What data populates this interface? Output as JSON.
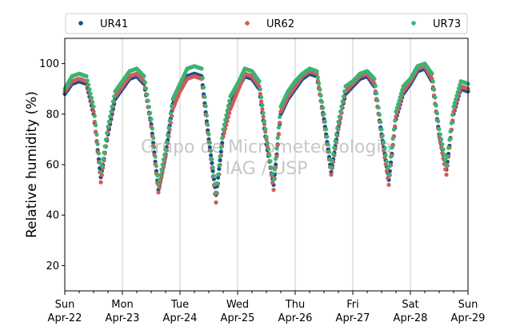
{
  "chart_data": {
    "type": "scatter",
    "title": "",
    "xlabel": "",
    "ylabel": "Relative humidity (%)",
    "watermark": [
      "Grupo de Micrometeorologia",
      "IAG / USP"
    ],
    "ylim": [
      10,
      110
    ],
    "xlim": [
      "2018-04-22 00:00",
      "2018-04-29 00:00"
    ],
    "yticks": [
      20,
      40,
      60,
      80,
      100
    ],
    "xticks": [
      {
        "day": "Sun",
        "date": "Apr-22"
      },
      {
        "day": "Mon",
        "date": "Apr-23"
      },
      {
        "day": "Tue",
        "date": "Apr-24"
      },
      {
        "day": "Wed",
        "date": "Apr-25"
      },
      {
        "day": "Thu",
        "date": "Apr-26"
      },
      {
        "day": "Fri",
        "date": "Apr-27"
      },
      {
        "day": "Sat",
        "date": "Apr-28"
      },
      {
        "day": "Sun",
        "date": "Apr-29"
      }
    ],
    "grid": "vertical",
    "legend_position": "top",
    "x": [
      "2018-04-22 00:00",
      "2018-04-22 03:00",
      "2018-04-22 06:00",
      "2018-04-22 09:00",
      "2018-04-22 12:00",
      "2018-04-22 15:00",
      "2018-04-22 18:00",
      "2018-04-22 21:00",
      "2018-04-23 00:00",
      "2018-04-23 03:00",
      "2018-04-23 06:00",
      "2018-04-23 09:00",
      "2018-04-23 12:00",
      "2018-04-23 15:00",
      "2018-04-23 18:00",
      "2018-04-23 21:00",
      "2018-04-24 00:00",
      "2018-04-24 03:00",
      "2018-04-24 06:00",
      "2018-04-24 09:00",
      "2018-04-24 12:00",
      "2018-04-24 15:00",
      "2018-04-24 18:00",
      "2018-04-24 21:00",
      "2018-04-25 00:00",
      "2018-04-25 03:00",
      "2018-04-25 06:00",
      "2018-04-25 09:00",
      "2018-04-25 12:00",
      "2018-04-25 15:00",
      "2018-04-25 18:00",
      "2018-04-25 21:00",
      "2018-04-26 00:00",
      "2018-04-26 03:00",
      "2018-04-26 06:00",
      "2018-04-26 09:00",
      "2018-04-26 12:00",
      "2018-04-26 15:00",
      "2018-04-26 18:00",
      "2018-04-26 21:00",
      "2018-04-27 00:00",
      "2018-04-27 03:00",
      "2018-04-27 06:00",
      "2018-04-27 09:00",
      "2018-04-27 12:00",
      "2018-04-27 15:00",
      "2018-04-27 18:00",
      "2018-04-27 21:00",
      "2018-04-28 00:00",
      "2018-04-28 03:00",
      "2018-04-28 06:00",
      "2018-04-28 09:00",
      "2018-04-28 12:00",
      "2018-04-28 15:00",
      "2018-04-28 18:00",
      "2018-04-28 21:00",
      "2018-04-29 00:00"
    ],
    "series": [
      {
        "name": "UR41",
        "color": "#1f4e8c",
        "values": [
          88,
          92,
          93,
          92,
          80,
          55,
          72,
          86,
          90,
          94,
          95,
          92,
          76,
          50,
          64,
          84,
          90,
          95,
          96,
          95,
          70,
          48,
          72,
          84,
          90,
          95,
          94,
          90,
          68,
          52,
          80,
          86,
          90,
          94,
          96,
          95,
          78,
          57,
          75,
          88,
          91,
          94,
          95,
          91,
          72,
          54,
          78,
          88,
          92,
          97,
          98,
          93,
          72,
          58,
          80,
          90,
          89
        ]
      },
      {
        "name": "UR62",
        "color": "#cd5c5c",
        "values": [
          89,
          93,
          94,
          93,
          81,
          53,
          73,
          87,
          91,
          95,
          96,
          93,
          75,
          49,
          63,
          82,
          89,
          94,
          95,
          94,
          69,
          45,
          71,
          82,
          89,
          96,
          95,
          91,
          70,
          50,
          81,
          87,
          91,
          95,
          97,
          96,
          77,
          56,
          74,
          89,
          92,
          95,
          96,
          92,
          71,
          52,
          79,
          89,
          93,
          98,
          99,
          94,
          71,
          56,
          81,
          91,
          90
        ]
      },
      {
        "name": "UR73",
        "color": "#3cb371",
        "values": [
          90,
          95,
          96,
          95,
          83,
          57,
          75,
          89,
          93,
          97,
          98,
          95,
          78,
          52,
          66,
          86,
          92,
          98,
          99,
          98,
          72,
          49,
          74,
          87,
          92,
          98,
          97,
          93,
          71,
          54,
          83,
          89,
          93,
          96,
          98,
          97,
          80,
          59,
          77,
          91,
          93,
          96,
          97,
          94,
          74,
          56,
          81,
          91,
          94,
          99,
          100,
          96,
          74,
          60,
          83,
          93,
          92
        ]
      }
    ]
  }
}
